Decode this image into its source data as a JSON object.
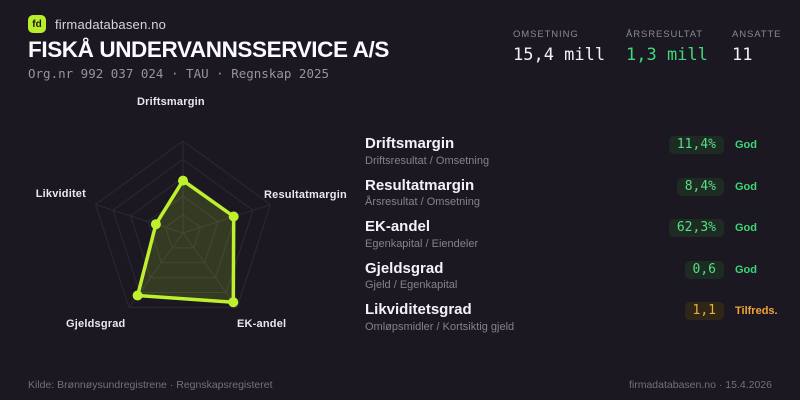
{
  "brand": {
    "logo_text": "fd",
    "name": "firmadatabasen.no"
  },
  "header": {
    "company_name": "FISKÅ UNDERVANNSSERVICE A/S",
    "org_line": "Org.nr 992 037 024 · TAU · Regnskap 2025"
  },
  "key_stats": [
    {
      "label": "OMSETNING",
      "value": "15,4 mill",
      "accent": "false"
    },
    {
      "label": "ÅRSRESULTAT",
      "value": "1,3 mill",
      "accent": "true"
    },
    {
      "label": "ANSATTE",
      "value": "11",
      "accent": "false"
    }
  ],
  "metrics": [
    {
      "title": "Driftsmargin",
      "subtitle": "Driftsresultat / Omsetning",
      "value": "11,4%",
      "status": "God",
      "level": "good"
    },
    {
      "title": "Resultatmargin",
      "subtitle": "Årsresultat / Omsetning",
      "value": "8,4%",
      "status": "God",
      "level": "good"
    },
    {
      "title": "EK-andel",
      "subtitle": "Egenkapital / Eiendeler",
      "value": "62,3%",
      "status": "God",
      "level": "good"
    },
    {
      "title": "Gjeldsgrad",
      "subtitle": "Gjeld / Egenkapital",
      "value": "0,6",
      "status": "God",
      "level": "good"
    },
    {
      "title": "Likviditetsgrad",
      "subtitle": "Omløpsmidler / Kortsiktig gjeld",
      "value": "1,1",
      "status": "Tilfreds.",
      "level": "warn"
    }
  ],
  "chart_data": {
    "type": "radar",
    "axes": [
      "Driftsmargin",
      "Resultatmargin",
      "EK-andel",
      "Gjeldsgrad",
      "Likviditet"
    ],
    "values_normalized": [
      0.57,
      0.58,
      0.93,
      0.84,
      0.31
    ],
    "metric_values": [
      "11,4%",
      "8,4%",
      "62,3%",
      "0,6",
      "1,1"
    ],
    "rings": 5,
    "legend": "none",
    "colors": {
      "stroke": "#bef02d",
      "fill": "rgba(190,240,45,0.16)",
      "grid": "#2b2a36"
    }
  },
  "footer": {
    "source": "Kilde: Brønnøysundregistrene · Regnskapsregisteret",
    "site": "firmadatabasen.no · 15.4.2026"
  }
}
